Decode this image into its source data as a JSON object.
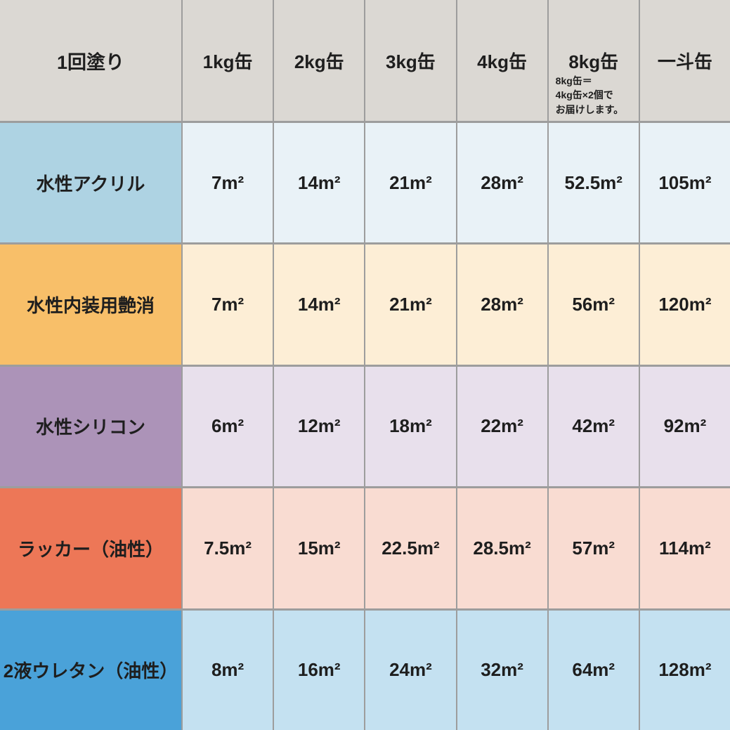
{
  "table": {
    "corner_label": "1回塗り",
    "columns": [
      "1kg缶",
      "2kg缶",
      "3kg缶",
      "4kg缶",
      "8kg缶",
      "一斗缶"
    ],
    "note_8kg": "8kg缶＝\n4kg缶×2個で\nお届けします。",
    "unit": "m²",
    "rows": [
      {
        "label": "水性アクリル",
        "cells": [
          "7m²",
          "14m²",
          "21m²",
          "28m²",
          "52.5m²",
          "105m²"
        ]
      },
      {
        "label": "水性内装用艶消",
        "cells": [
          "7m²",
          "14m²",
          "21m²",
          "28m²",
          "56m²",
          "120m²"
        ]
      },
      {
        "label": "水性シリコン",
        "cells": [
          "6m²",
          "12m²",
          "18m²",
          "22m²",
          "42m²",
          "92m²"
        ]
      },
      {
        "label": "ラッカー（油性）",
        "cells": [
          "7.5m²",
          "15m²",
          "22.5m²",
          "28.5m²",
          "57m²",
          "114m²"
        ]
      },
      {
        "label": "2液ウレタン（油性）",
        "cells": [
          "8m²",
          "16m²",
          "24m²",
          "32m²",
          "64m²",
          "128m²"
        ]
      }
    ]
  },
  "colors": {
    "gridline": "#9d9d9d",
    "header_bg": "#dbd8d3",
    "text": "#1e1e1e",
    "row_label_bg": [
      "#aed3e3",
      "#f8bf69",
      "#ac93b8",
      "#ed7757",
      "#4aa2d9"
    ],
    "row_cell_bg": [
      "#e9f2f7",
      "#fdeed6",
      "#e8e0ec",
      "#f9dcd2",
      "#c4e1f1"
    ]
  },
  "chart_data": {
    "type": "table",
    "title": "1回塗り",
    "columns": [
      "1kg缶",
      "2kg缶",
      "3kg缶",
      "4kg缶",
      "8kg缶",
      "一斗缶"
    ],
    "unit": "m²",
    "rows": [
      {
        "name": "水性アクリル",
        "values": [
          7,
          14,
          21,
          28,
          52.5,
          105
        ]
      },
      {
        "name": "水性内装用艶消",
        "values": [
          7,
          14,
          21,
          28,
          56,
          120
        ]
      },
      {
        "name": "水性シリコン",
        "values": [
          6,
          12,
          18,
          22,
          42,
          92
        ]
      },
      {
        "name": "ラッカー（油性）",
        "values": [
          7.5,
          15,
          22.5,
          28.5,
          57,
          114
        ]
      },
      {
        "name": "2液ウレタン（油性）",
        "values": [
          8,
          16,
          24,
          32,
          64,
          128
        ]
      }
    ],
    "note": "8kg缶＝4kg缶×2個でお届けします。"
  }
}
